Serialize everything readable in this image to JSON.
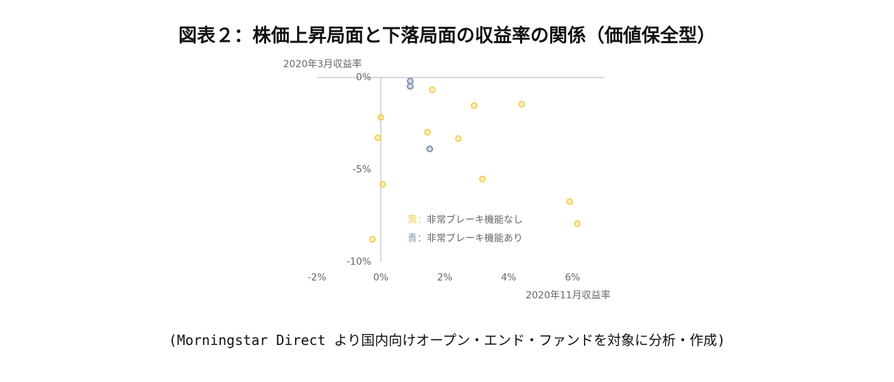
{
  "chart_data": {
    "type": "scatter",
    "title": "図表２：株価上昇局面と下落局面の収益率の関係（価値保全型）",
    "note": "(Morningstar Direct より国内向けオープン・エンド・ファンドを対象に分析・作成)",
    "x_label": "2020年11月収益率",
    "y_label": "2020年3月収益率",
    "xlim": [
      -2,
      7
    ],
    "ylim": [
      -10,
      0
    ],
    "xticks": [
      {
        "value": -2,
        "label": "-2%"
      },
      {
        "value": 0,
        "label": "0%"
      },
      {
        "value": 2,
        "label": "2%"
      },
      {
        "value": 4,
        "label": "4%"
      },
      {
        "value": 6,
        "label": "6%"
      }
    ],
    "yticks": [
      {
        "value": 0,
        "label": "0%"
      },
      {
        "value": -5,
        "label": "-5%"
      },
      {
        "value": -10,
        "label": "-10%"
      }
    ],
    "series": [
      {
        "name": "黄：非常ブレーキ機能なし",
        "color": "#f2d25a",
        "x": [
          1.61,
          2.92,
          4.41,
          0.0,
          1.46,
          -0.09,
          2.43,
          3.18,
          0.06,
          5.91,
          6.15,
          -0.26
        ],
        "values": [
          -0.67,
          -1.52,
          -1.45,
          -2.16,
          -2.97,
          -3.27,
          -3.31,
          -5.5,
          -5.8,
          -6.73,
          -7.92,
          -8.77
        ]
      },
      {
        "name": "青：非常ブレーキ機能あり",
        "color": "#8593b3",
        "x": [
          0.92,
          0.92,
          1.53
        ],
        "values": [
          -0.19,
          -0.48,
          -3.87
        ]
      }
    ]
  }
}
